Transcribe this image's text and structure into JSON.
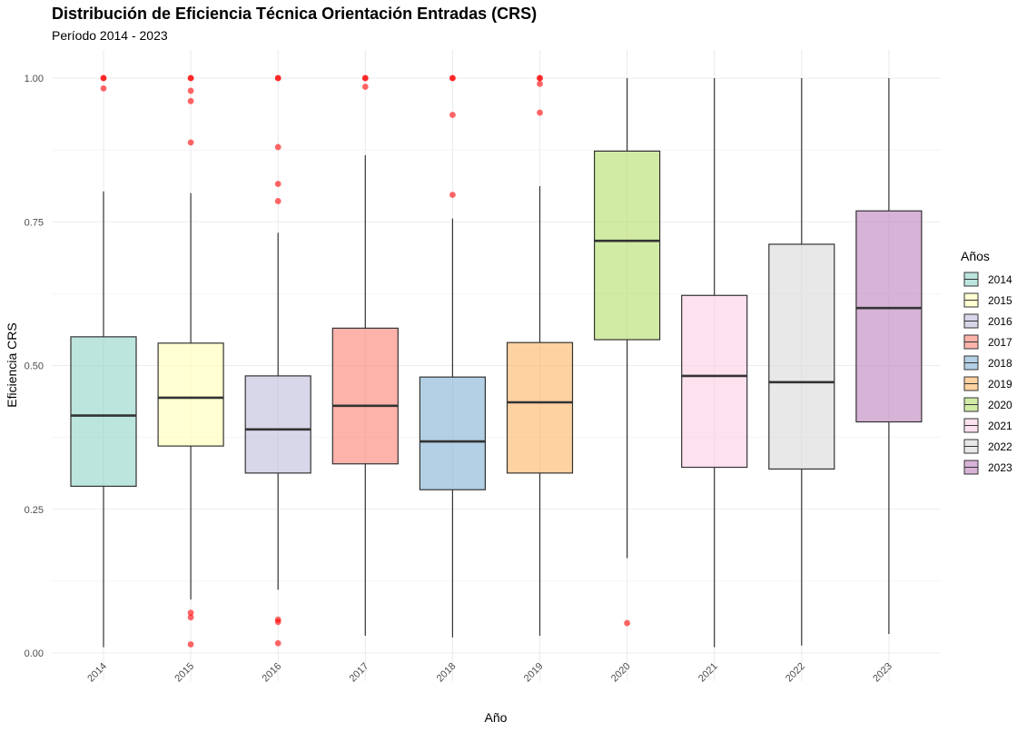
{
  "chart_data": {
    "type": "boxplot",
    "title": "Distribución de Eficiencia Técnica Orientación Entradas (CRS)",
    "subtitle": "Período 2014 - 2023",
    "xlabel": "Año",
    "ylabel": "Eficiencia CRS",
    "ylim": [
      0,
      1
    ],
    "yticks": [
      "0.00",
      "0.25",
      "0.50",
      "0.75",
      "1.00"
    ],
    "grid": true,
    "legend": {
      "title": "Años",
      "position": "right"
    },
    "outlier_color": "#ff0000",
    "categories": [
      "2014",
      "2015",
      "2016",
      "2017",
      "2018",
      "2019",
      "2020",
      "2021",
      "2022",
      "2023"
    ],
    "series": [
      {
        "name": "2014",
        "color": "#8dd3c7",
        "min": 0.01,
        "q1": 0.29,
        "median": 0.413,
        "q3": 0.55,
        "max": 0.803,
        "outliers": [
          1.0,
          1.0,
          0.982
        ]
      },
      {
        "name": "2015",
        "color": "#ffffb3",
        "min": 0.093,
        "q1": 0.36,
        "median": 0.444,
        "q3": 0.539,
        "max": 0.8,
        "outliers": [
          1.0,
          1.0,
          0.978,
          0.96,
          0.888,
          0.07,
          0.062,
          0.015
        ]
      },
      {
        "name": "2016",
        "color": "#bebada",
        "min": 0.11,
        "q1": 0.313,
        "median": 0.389,
        "q3": 0.482,
        "max": 0.731,
        "outliers": [
          1.0,
          1.0,
          0.88,
          0.816,
          0.786,
          0.058,
          0.054,
          0.017
        ]
      },
      {
        "name": "2017",
        "color": "#fb8072",
        "min": 0.03,
        "q1": 0.329,
        "median": 0.43,
        "q3": 0.565,
        "max": 0.866,
        "outliers": [
          1.0,
          1.0,
          0.985
        ]
      },
      {
        "name": "2018",
        "color": "#80b1d3",
        "min": 0.027,
        "q1": 0.284,
        "median": 0.368,
        "q3": 0.48,
        "max": 0.756,
        "outliers": [
          1.0,
          1.0,
          0.936,
          0.797
        ]
      },
      {
        "name": "2019",
        "color": "#fdb462",
        "min": 0.03,
        "q1": 0.313,
        "median": 0.436,
        "q3": 0.54,
        "max": 0.812,
        "outliers": [
          1.0,
          1.0,
          0.99,
          0.94
        ]
      },
      {
        "name": "2020",
        "color": "#b3de69",
        "min": 0.165,
        "q1": 0.545,
        "median": 0.717,
        "q3": 0.873,
        "max": 1.0,
        "outliers": [
          0.052
        ]
      },
      {
        "name": "2021",
        "color": "#fccde5",
        "min": 0.01,
        "q1": 0.323,
        "median": 0.482,
        "q3": 0.622,
        "max": 1.0,
        "outliers": []
      },
      {
        "name": "2022",
        "color": "#d9d9d9",
        "min": 0.013,
        "q1": 0.32,
        "median": 0.471,
        "q3": 0.711,
        "max": 1.0,
        "outliers": []
      },
      {
        "name": "2023",
        "color": "#bc80bd",
        "min": 0.033,
        "q1": 0.402,
        "median": 0.6,
        "q3": 0.769,
        "max": 1.0,
        "outliers": []
      }
    ]
  }
}
